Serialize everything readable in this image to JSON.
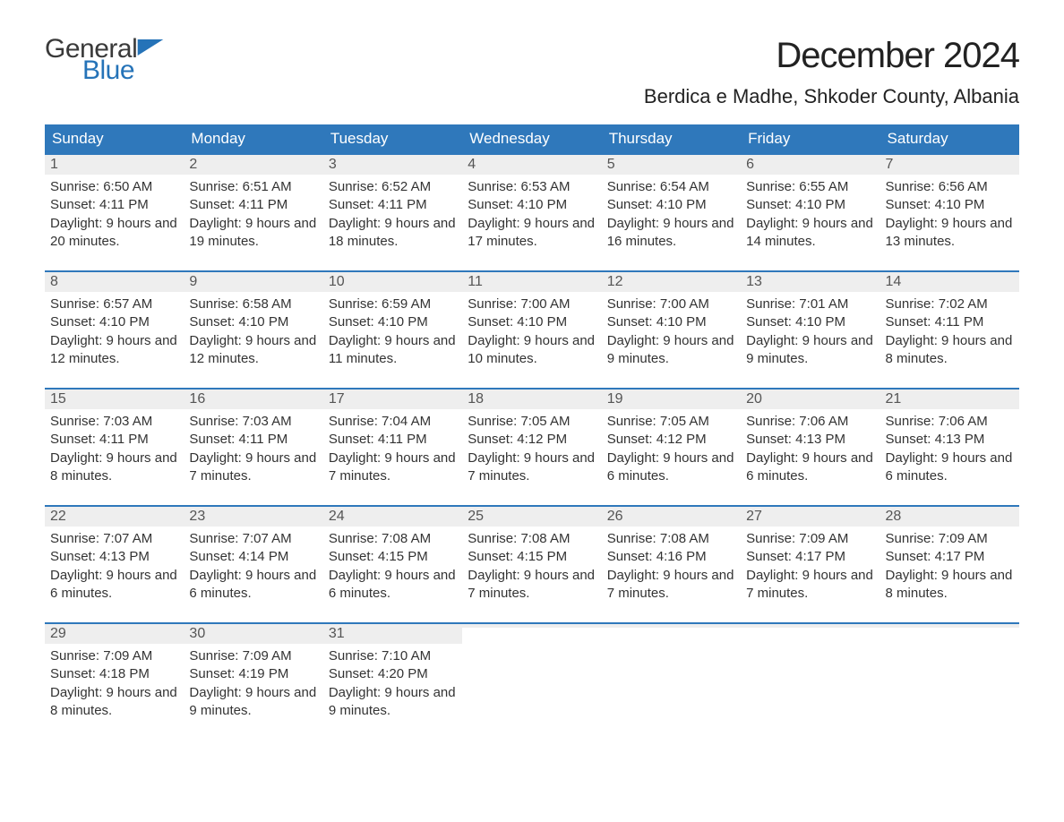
{
  "logo": {
    "word1": "General",
    "word2": "Blue"
  },
  "title": "December 2024",
  "location": "Berdica e Madhe, Shkoder County, Albania",
  "colors": {
    "header_bg": "#2f78bb",
    "header_text": "#ffffff",
    "border": "#2f78bb",
    "daynum_bg": "#eeeeee",
    "daynum_text": "#555555",
    "body_text": "#333333",
    "logo_gray": "#3a3a3a",
    "logo_blue": "#2573b8",
    "page_bg": "#ffffff"
  },
  "font": {
    "family": "Arial",
    "title_size": 40,
    "location_size": 22,
    "header_size": 17,
    "body_size": 15
  },
  "dayHeaders": [
    "Sunday",
    "Monday",
    "Tuesday",
    "Wednesday",
    "Thursday",
    "Friday",
    "Saturday"
  ],
  "weeks": [
    [
      {
        "n": "1",
        "sunrise": "Sunrise: 6:50 AM",
        "sunset": "Sunset: 4:11 PM",
        "daylight": "Daylight: 9 hours and 20 minutes."
      },
      {
        "n": "2",
        "sunrise": "Sunrise: 6:51 AM",
        "sunset": "Sunset: 4:11 PM",
        "daylight": "Daylight: 9 hours and 19 minutes."
      },
      {
        "n": "3",
        "sunrise": "Sunrise: 6:52 AM",
        "sunset": "Sunset: 4:11 PM",
        "daylight": "Daylight: 9 hours and 18 minutes."
      },
      {
        "n": "4",
        "sunrise": "Sunrise: 6:53 AM",
        "sunset": "Sunset: 4:10 PM",
        "daylight": "Daylight: 9 hours and 17 minutes."
      },
      {
        "n": "5",
        "sunrise": "Sunrise: 6:54 AM",
        "sunset": "Sunset: 4:10 PM",
        "daylight": "Daylight: 9 hours and 16 minutes."
      },
      {
        "n": "6",
        "sunrise": "Sunrise: 6:55 AM",
        "sunset": "Sunset: 4:10 PM",
        "daylight": "Daylight: 9 hours and 14 minutes."
      },
      {
        "n": "7",
        "sunrise": "Sunrise: 6:56 AM",
        "sunset": "Sunset: 4:10 PM",
        "daylight": "Daylight: 9 hours and 13 minutes."
      }
    ],
    [
      {
        "n": "8",
        "sunrise": "Sunrise: 6:57 AM",
        "sunset": "Sunset: 4:10 PM",
        "daylight": "Daylight: 9 hours and 12 minutes."
      },
      {
        "n": "9",
        "sunrise": "Sunrise: 6:58 AM",
        "sunset": "Sunset: 4:10 PM",
        "daylight": "Daylight: 9 hours and 12 minutes."
      },
      {
        "n": "10",
        "sunrise": "Sunrise: 6:59 AM",
        "sunset": "Sunset: 4:10 PM",
        "daylight": "Daylight: 9 hours and 11 minutes."
      },
      {
        "n": "11",
        "sunrise": "Sunrise: 7:00 AM",
        "sunset": "Sunset: 4:10 PM",
        "daylight": "Daylight: 9 hours and 10 minutes."
      },
      {
        "n": "12",
        "sunrise": "Sunrise: 7:00 AM",
        "sunset": "Sunset: 4:10 PM",
        "daylight": "Daylight: 9 hours and 9 minutes."
      },
      {
        "n": "13",
        "sunrise": "Sunrise: 7:01 AM",
        "sunset": "Sunset: 4:10 PM",
        "daylight": "Daylight: 9 hours and 9 minutes."
      },
      {
        "n": "14",
        "sunrise": "Sunrise: 7:02 AM",
        "sunset": "Sunset: 4:11 PM",
        "daylight": "Daylight: 9 hours and 8 minutes."
      }
    ],
    [
      {
        "n": "15",
        "sunrise": "Sunrise: 7:03 AM",
        "sunset": "Sunset: 4:11 PM",
        "daylight": "Daylight: 9 hours and 8 minutes."
      },
      {
        "n": "16",
        "sunrise": "Sunrise: 7:03 AM",
        "sunset": "Sunset: 4:11 PM",
        "daylight": "Daylight: 9 hours and 7 minutes."
      },
      {
        "n": "17",
        "sunrise": "Sunrise: 7:04 AM",
        "sunset": "Sunset: 4:11 PM",
        "daylight": "Daylight: 9 hours and 7 minutes."
      },
      {
        "n": "18",
        "sunrise": "Sunrise: 7:05 AM",
        "sunset": "Sunset: 4:12 PM",
        "daylight": "Daylight: 9 hours and 7 minutes."
      },
      {
        "n": "19",
        "sunrise": "Sunrise: 7:05 AM",
        "sunset": "Sunset: 4:12 PM",
        "daylight": "Daylight: 9 hours and 6 minutes."
      },
      {
        "n": "20",
        "sunrise": "Sunrise: 7:06 AM",
        "sunset": "Sunset: 4:13 PM",
        "daylight": "Daylight: 9 hours and 6 minutes."
      },
      {
        "n": "21",
        "sunrise": "Sunrise: 7:06 AM",
        "sunset": "Sunset: 4:13 PM",
        "daylight": "Daylight: 9 hours and 6 minutes."
      }
    ],
    [
      {
        "n": "22",
        "sunrise": "Sunrise: 7:07 AM",
        "sunset": "Sunset: 4:13 PM",
        "daylight": "Daylight: 9 hours and 6 minutes."
      },
      {
        "n": "23",
        "sunrise": "Sunrise: 7:07 AM",
        "sunset": "Sunset: 4:14 PM",
        "daylight": "Daylight: 9 hours and 6 minutes."
      },
      {
        "n": "24",
        "sunrise": "Sunrise: 7:08 AM",
        "sunset": "Sunset: 4:15 PM",
        "daylight": "Daylight: 9 hours and 6 minutes."
      },
      {
        "n": "25",
        "sunrise": "Sunrise: 7:08 AM",
        "sunset": "Sunset: 4:15 PM",
        "daylight": "Daylight: 9 hours and 7 minutes."
      },
      {
        "n": "26",
        "sunrise": "Sunrise: 7:08 AM",
        "sunset": "Sunset: 4:16 PM",
        "daylight": "Daylight: 9 hours and 7 minutes."
      },
      {
        "n": "27",
        "sunrise": "Sunrise: 7:09 AM",
        "sunset": "Sunset: 4:17 PM",
        "daylight": "Daylight: 9 hours and 7 minutes."
      },
      {
        "n": "28",
        "sunrise": "Sunrise: 7:09 AM",
        "sunset": "Sunset: 4:17 PM",
        "daylight": "Daylight: 9 hours and 8 minutes."
      }
    ],
    [
      {
        "n": "29",
        "sunrise": "Sunrise: 7:09 AM",
        "sunset": "Sunset: 4:18 PM",
        "daylight": "Daylight: 9 hours and 8 minutes."
      },
      {
        "n": "30",
        "sunrise": "Sunrise: 7:09 AM",
        "sunset": "Sunset: 4:19 PM",
        "daylight": "Daylight: 9 hours and 9 minutes."
      },
      {
        "n": "31",
        "sunrise": "Sunrise: 7:10 AM",
        "sunset": "Sunset: 4:20 PM",
        "daylight": "Daylight: 9 hours and 9 minutes."
      },
      {
        "n": "",
        "sunrise": "",
        "sunset": "",
        "daylight": ""
      },
      {
        "n": "",
        "sunrise": "",
        "sunset": "",
        "daylight": ""
      },
      {
        "n": "",
        "sunrise": "",
        "sunset": "",
        "daylight": ""
      },
      {
        "n": "",
        "sunrise": "",
        "sunset": "",
        "daylight": ""
      }
    ]
  ]
}
